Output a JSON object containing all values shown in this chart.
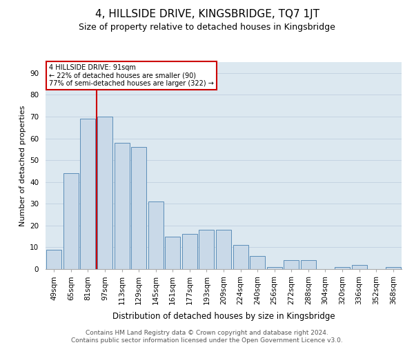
{
  "title": "4, HILLSIDE DRIVE, KINGSBRIDGE, TQ7 1JT",
  "subtitle": "Size of property relative to detached houses in Kingsbridge",
  "xlabel": "Distribution of detached houses by size in Kingsbridge",
  "ylabel": "Number of detached properties",
  "categories": [
    "49sqm",
    "65sqm",
    "81sqm",
    "97sqm",
    "113sqm",
    "129sqm",
    "145sqm",
    "161sqm",
    "177sqm",
    "193sqm",
    "209sqm",
    "224sqm",
    "240sqm",
    "256sqm",
    "272sqm",
    "288sqm",
    "304sqm",
    "320sqm",
    "336sqm",
    "352sqm",
    "368sqm"
  ],
  "values": [
    9,
    44,
    69,
    70,
    58,
    56,
    31,
    15,
    16,
    18,
    18,
    11,
    6,
    1,
    4,
    4,
    0,
    1,
    2,
    0,
    1
  ],
  "bar_color": "#c9d9e8",
  "bar_edge_color": "#5b8db8",
  "marker_color": "#cc0000",
  "annotation_line1": "4 HILLSIDE DRIVE: 91sqm",
  "annotation_line2": "← 22% of detached houses are smaller (90)",
  "annotation_line3": "77% of semi-detached houses are larger (322) →",
  "annotation_box_color": "#cc0000",
  "ylim": [
    0,
    95
  ],
  "yticks": [
    0,
    10,
    20,
    30,
    40,
    50,
    60,
    70,
    80,
    90
  ],
  "grid_color": "#c0cfe0",
  "background_color": "#dce8f0",
  "footer_line1": "Contains HM Land Registry data © Crown copyright and database right 2024.",
  "footer_line2": "Contains public sector information licensed under the Open Government Licence v3.0.",
  "title_fontsize": 11,
  "subtitle_fontsize": 9,
  "axis_fontsize": 7.5,
  "footer_fontsize": 6.5
}
